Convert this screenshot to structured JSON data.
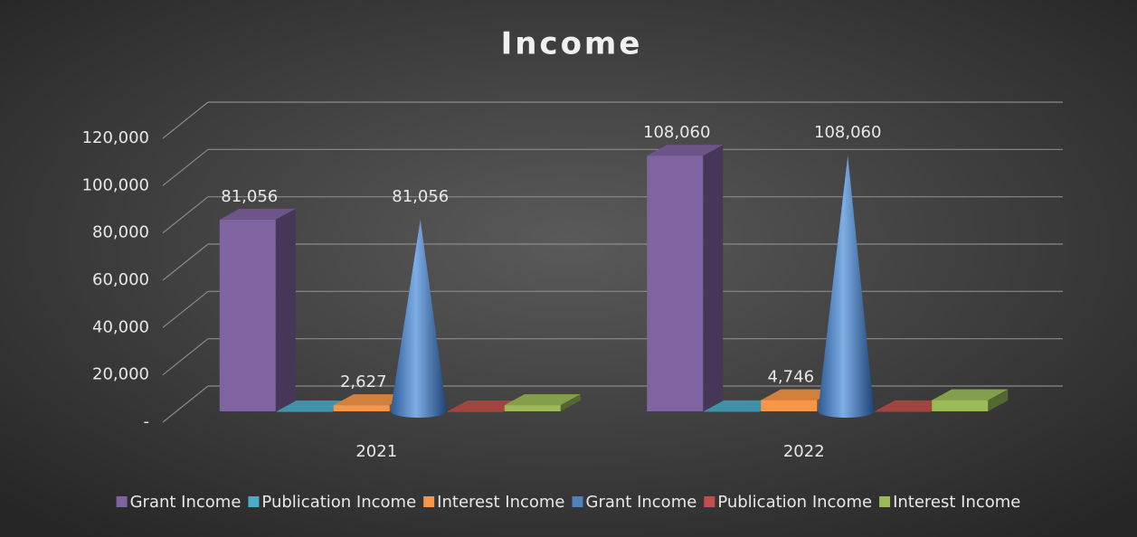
{
  "chart_data": {
    "type": "bar3d",
    "title": "Income",
    "categories": [
      "2021",
      "2022"
    ],
    "series": [
      {
        "name": "Grant Income",
        "color": "#8064a2",
        "shape": "box",
        "values": [
          81056,
          108060
        ],
        "value_labels": [
          "81,056",
          "108,060"
        ]
      },
      {
        "name": "Publication Income",
        "color": "#4bacc6",
        "shape": "box",
        "values": [
          14,
          47
        ]
      },
      {
        "name": "Interest Income",
        "color": "#f79646",
        "shape": "box",
        "values": [
          2627,
          4746
        ],
        "value_labels": [
          "2,627",
          "4,746"
        ]
      },
      {
        "name": "Grant Income",
        "color": "#4f81bd",
        "shape": "cone",
        "values": [
          81056,
          108060
        ],
        "value_labels": [
          "81,056",
          "108,060"
        ]
      },
      {
        "name": "Publication Income",
        "color": "#c0504d",
        "shape": "box",
        "values": [
          14,
          47
        ]
      },
      {
        "name": "Interest Income",
        "color": "#9bbb59",
        "shape": "box",
        "values": [
          2627,
          4746
        ]
      }
    ],
    "ylim": [
      0,
      120000
    ],
    "yticks": [
      {
        "value": 0,
        "label": "-"
      },
      {
        "value": 20000,
        "label": "20,000"
      },
      {
        "value": 40000,
        "label": "40,000"
      },
      {
        "value": 60000,
        "label": "60,000"
      },
      {
        "value": 80000,
        "label": "80,000"
      },
      {
        "value": 100000,
        "label": "100,000"
      },
      {
        "value": 120000,
        "label": "120,000"
      }
    ],
    "grid": true,
    "legend": "bottom"
  }
}
